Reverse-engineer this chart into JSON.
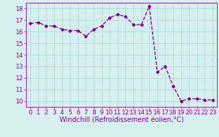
{
  "x": [
    0,
    1,
    2,
    3,
    4,
    5,
    6,
    7,
    8,
    9,
    10,
    11,
    12,
    13,
    14,
    15,
    16,
    17,
    18,
    19,
    20,
    21,
    22,
    23
  ],
  "y": [
    16.7,
    16.8,
    16.5,
    16.5,
    16.2,
    16.1,
    16.1,
    15.6,
    16.2,
    16.5,
    17.2,
    17.5,
    17.3,
    16.6,
    16.6,
    18.2,
    12.5,
    13.0,
    11.3,
    10.0,
    10.2,
    10.2,
    10.1,
    10.1
  ],
  "line_color": "#8B008B",
  "marker": "D",
  "marker_size": 2.0,
  "bg_color": "#d6f0f0",
  "grid_color": "#b0d8d8",
  "xlabel": "Windchill (Refroidissement éolien,°C)",
  "xlabel_color": "#8B008B",
  "xlabel_fontsize": 7,
  "xlim": [
    -0.5,
    23.5
  ],
  "ylim": [
    9.5,
    18.5
  ],
  "yticks": [
    10,
    11,
    12,
    13,
    14,
    15,
    16,
    17,
    18
  ],
  "xticks": [
    0,
    1,
    2,
    3,
    4,
    5,
    6,
    7,
    8,
    9,
    10,
    11,
    12,
    13,
    14,
    15,
    16,
    17,
    18,
    19,
    20,
    21,
    22,
    23
  ],
  "tick_color": "#8B008B",
  "tick_fontsize": 6.5,
  "spine_color": "#8B008B",
  "line_width": 1.0
}
